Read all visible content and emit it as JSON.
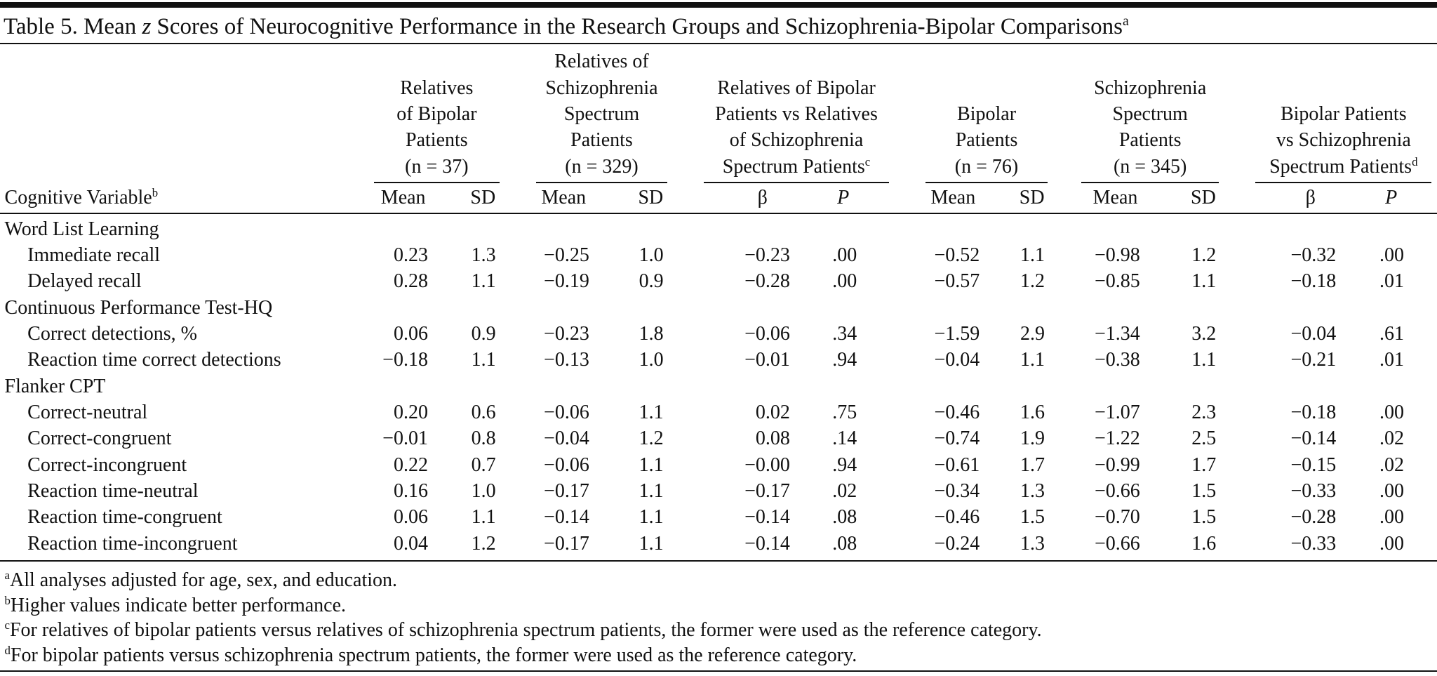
{
  "title": {
    "text": "Table 5. Mean ",
    "italic": "z",
    "rest": " Scores of Neurocognitive Performance in the Research Groups and Schizophrenia-Bipolar Comparisons",
    "sup": "a"
  },
  "table": {
    "stub_header": {
      "text": "Cognitive Variable",
      "sup": "b"
    },
    "groups": [
      {
        "lines": [
          "Relatives",
          "of Bipolar",
          "Patients",
          "(n = 37)"
        ],
        "subheaders": [
          "Mean",
          "SD"
        ]
      },
      {
        "lines": [
          "Relatives of",
          "Schizophrenia",
          "Spectrum",
          "Patients",
          "(n = 329)"
        ],
        "subheaders": [
          "Mean",
          "SD"
        ]
      },
      {
        "lines": [
          "Relatives of Bipolar",
          "Patients vs Relatives",
          "of Schizophrenia",
          "Spectrum Patients"
        ],
        "sup": "c",
        "subheaders": [
          "β",
          "P"
        ]
      },
      {
        "lines": [
          "Bipolar",
          "Patients",
          "(n = 76)"
        ],
        "subheaders": [
          "Mean",
          "SD"
        ]
      },
      {
        "lines": [
          "Schizophrenia",
          "Spectrum",
          "Patients",
          "(n = 345)"
        ],
        "subheaders": [
          "Mean",
          "SD"
        ]
      },
      {
        "lines": [
          "Bipolar Patients",
          "vs Schizophrenia",
          "Spectrum Patients"
        ],
        "sup": "d",
        "subheaders": [
          "β",
          "P"
        ]
      }
    ],
    "sections": [
      {
        "label": "Word List Learning",
        "rows": [
          {
            "label": "Immediate recall",
            "values": [
              "0.23",
              "1.3",
              "−0.25",
              "1.0",
              "−0.23",
              ".00",
              "−0.52",
              "1.1",
              "−0.98",
              "1.2",
              "−0.32",
              ".00"
            ]
          },
          {
            "label": "Delayed recall",
            "values": [
              "0.28",
              "1.1",
              "−0.19",
              "0.9",
              "−0.28",
              ".00",
              "−0.57",
              "1.2",
              "−0.85",
              "1.1",
              "−0.18",
              ".01"
            ]
          }
        ]
      },
      {
        "label": "Continuous Performance Test-HQ",
        "rows": [
          {
            "label": "Correct detections, %",
            "values": [
              "0.06",
              "0.9",
              "−0.23",
              "1.8",
              "−0.06",
              ".34",
              "−1.59",
              "2.9",
              "−1.34",
              "3.2",
              "−0.04",
              ".61"
            ]
          },
          {
            "label": "Reaction time correct detections",
            "values": [
              "−0.18",
              "1.1",
              "−0.13",
              "1.0",
              "−0.01",
              ".94",
              "−0.04",
              "1.1",
              "−0.38",
              "1.1",
              "−0.21",
              ".01"
            ]
          }
        ]
      },
      {
        "label": "Flanker CPT",
        "rows": [
          {
            "label": "Correct-neutral",
            "values": [
              "0.20",
              "0.6",
              "−0.06",
              "1.1",
              "0.02",
              ".75",
              "−0.46",
              "1.6",
              "−1.07",
              "2.3",
              "−0.18",
              ".00"
            ]
          },
          {
            "label": "Correct-congruent",
            "values": [
              "−0.01",
              "0.8",
              "−0.04",
              "1.2",
              "0.08",
              ".14",
              "−0.74",
              "1.9",
              "−1.22",
              "2.5",
              "−0.14",
              ".02"
            ]
          },
          {
            "label": "Correct-incongruent",
            "values": [
              "0.22",
              "0.7",
              "−0.06",
              "1.1",
              "−0.00",
              ".94",
              "−0.61",
              "1.7",
              "−0.99",
              "1.7",
              "−0.15",
              ".02"
            ]
          },
          {
            "label": "Reaction time-neutral",
            "values": [
              "0.16",
              "1.0",
              "−0.17",
              "1.1",
              "−0.17",
              ".02",
              "−0.34",
              "1.3",
              "−0.66",
              "1.5",
              "−0.33",
              ".00"
            ]
          },
          {
            "label": "Reaction time-congruent",
            "values": [
              "0.06",
              "1.1",
              "−0.14",
              "1.1",
              "−0.14",
              ".08",
              "−0.46",
              "1.5",
              "−0.70",
              "1.5",
              "−0.28",
              ".00"
            ]
          },
          {
            "label": "Reaction time-incongruent",
            "values": [
              "0.04",
              "1.2",
              "−0.17",
              "1.1",
              "−0.14",
              ".08",
              "−0.24",
              "1.3",
              "−0.66",
              "1.6",
              "−0.33",
              ".00"
            ]
          }
        ]
      }
    ]
  },
  "footnotes": [
    {
      "mark": "a",
      "text": "All analyses adjusted for age, sex, and education."
    },
    {
      "mark": "b",
      "text": "Higher values indicate better performance."
    },
    {
      "mark": "c",
      "text": "For relatives of bipolar patients versus relatives of schizophrenia spectrum patients, the former were used as the reference category."
    },
    {
      "mark": "d",
      "text": "For bipolar patients versus schizophrenia spectrum patients, the former were used as the reference category."
    }
  ]
}
